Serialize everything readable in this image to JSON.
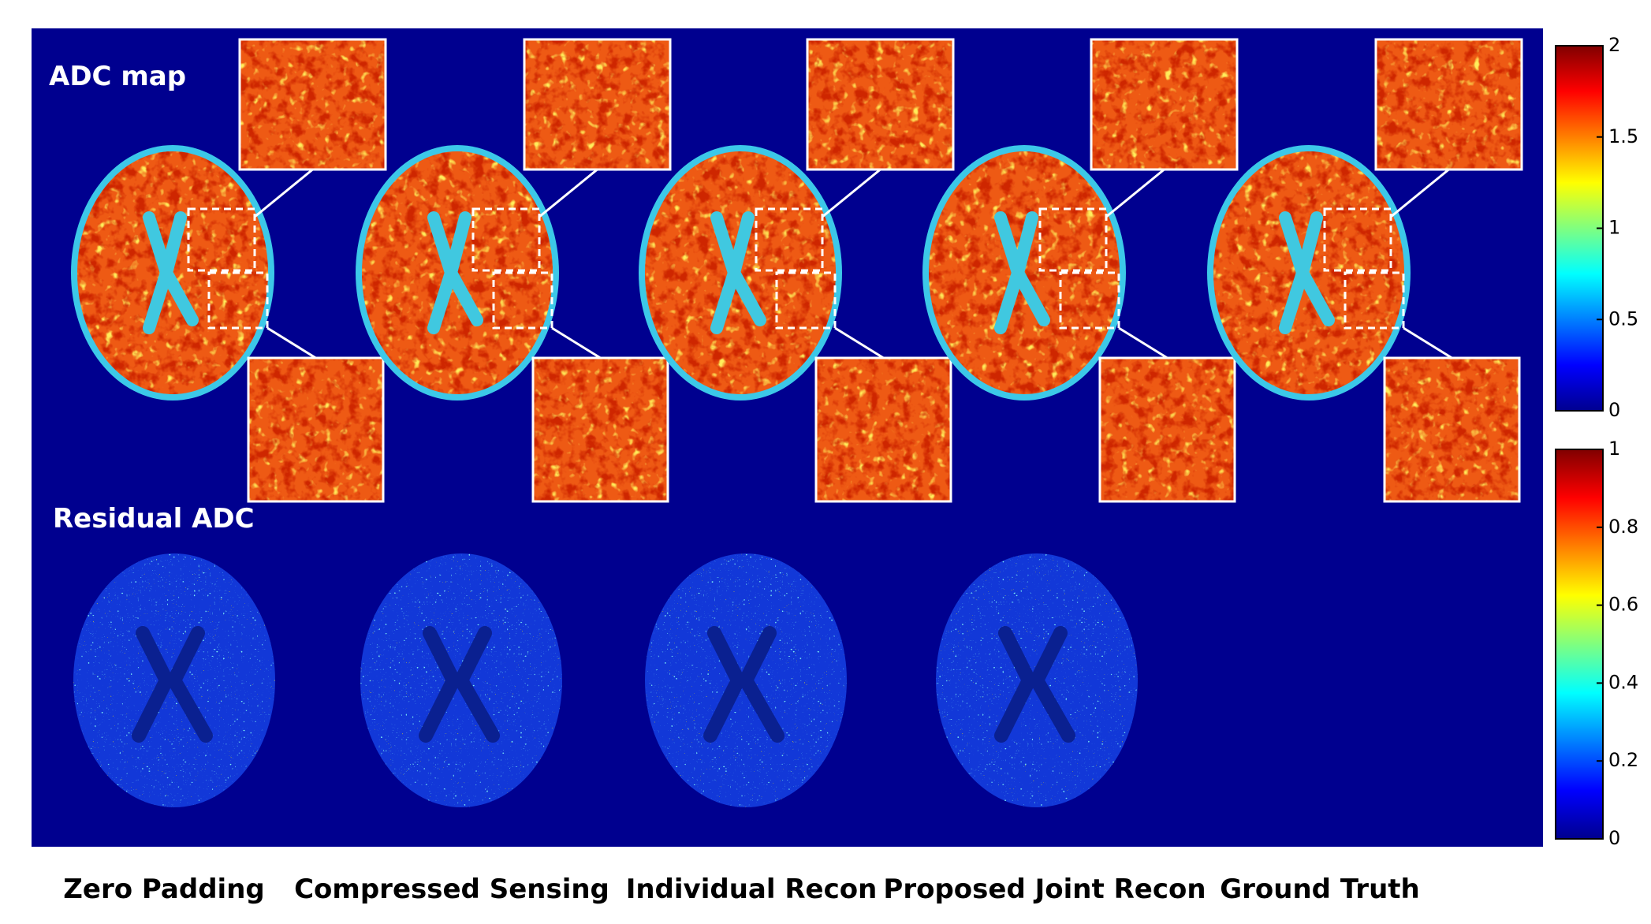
{
  "row_labels": {
    "top": "ADC map",
    "bottom": "Residual ADC"
  },
  "columns": [
    "Zero Padding",
    "Compressed Sensing",
    "Individual Recon",
    "Proposed Joint Recon",
    "Ground Truth"
  ],
  "colorbars": [
    {
      "lim": [
        0,
        2
      ],
      "ticks": [
        0,
        0.5,
        1,
        1.5,
        2
      ]
    },
    {
      "lim": [
        0,
        1
      ],
      "ticks": [
        0,
        0.2,
        0.4,
        0.6,
        0.8,
        1
      ]
    }
  ]
}
